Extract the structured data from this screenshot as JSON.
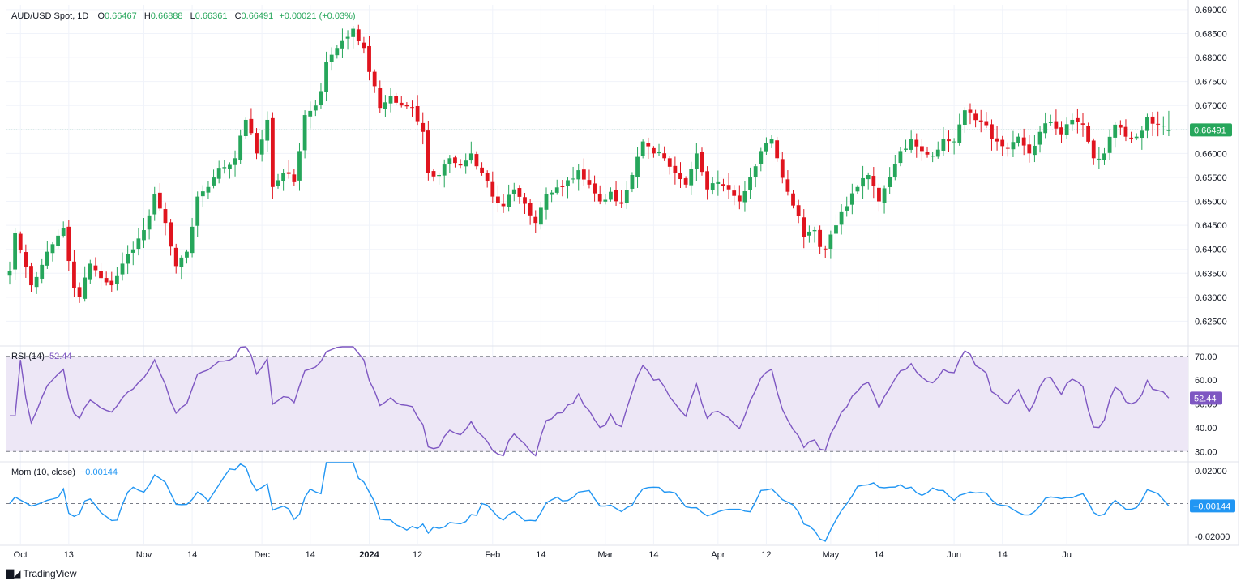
{
  "header": {
    "symbol": "AUD/USD Spot, 1D",
    "o_label": "O",
    "o_value": "0.66467",
    "h_label": "H",
    "h_value": "0.66888",
    "l_label": "L",
    "l_value": "0.66361",
    "c_label": "C",
    "c_value": "0.66491",
    "change": "+0.00021 (+0.03%)"
  },
  "rsi_legend": {
    "label": "RSI (14)",
    "value": "52.44"
  },
  "mom_legend": {
    "label": "Mom (10, close)",
    "value": "−0.00144"
  },
  "branding": {
    "name": "TradingView"
  },
  "colors": {
    "up": "#26a65b",
    "down": "#e0141e",
    "rsi_line": "#7e57c2",
    "rsi_band": "#ede7f6",
    "mom_line": "#2196f3",
    "last_badge": "#26a65b",
    "mom_badge": "#2196f3"
  },
  "chart_data": [
    {
      "type": "candlestick",
      "title": "AUD/USD Spot, 1D",
      "ylim": [
        0.62,
        0.691
      ],
      "y_ticks": [
        "0.69000",
        "0.68500",
        "0.68000",
        "0.67500",
        "0.67000",
        "0.66500",
        "0.66000",
        "0.65500",
        "0.65000",
        "0.64500",
        "0.64000",
        "0.63500",
        "0.63000",
        "0.62500"
      ],
      "last_price": "0.66491",
      "x_ticks": [
        {
          "label": "Oct",
          "index": 2
        },
        {
          "label": "13",
          "index": 11
        },
        {
          "label": "Nov",
          "index": 25
        },
        {
          "label": "14",
          "index": 34
        },
        {
          "label": "Dec",
          "index": 47
        },
        {
          "label": "14",
          "index": 56
        },
        {
          "label": "2024",
          "index": 67
        },
        {
          "label": "12",
          "index": 76
        },
        {
          "label": "Feb",
          "index": 90
        },
        {
          "label": "14",
          "index": 99
        },
        {
          "label": "Mar",
          "index": 111
        },
        {
          "label": "14",
          "index": 120
        },
        {
          "label": "Apr",
          "index": 132
        },
        {
          "label": "12",
          "index": 141
        },
        {
          "label": "May",
          "index": 153
        },
        {
          "label": "14",
          "index": 162
        },
        {
          "label": "Jun",
          "index": 176
        },
        {
          "label": "14",
          "index": 185
        },
        {
          "label": "Ju",
          "index": 197
        }
      ],
      "close_anchors": [
        [
          0,
          0.6355
        ],
        [
          1,
          0.6435
        ],
        [
          4,
          0.6325
        ],
        [
          7,
          0.6395
        ],
        [
          10,
          0.6445
        ],
        [
          12,
          0.632
        ],
        [
          13,
          0.63
        ],
        [
          15,
          0.637
        ],
        [
          17,
          0.634
        ],
        [
          19,
          0.6325
        ],
        [
          21,
          0.637
        ],
        [
          23,
          0.64
        ],
        [
          25,
          0.644
        ],
        [
          27,
          0.6515
        ],
        [
          29,
          0.6455
        ],
        [
          31,
          0.6365
        ],
        [
          33,
          0.6395
        ],
        [
          35,
          0.651
        ],
        [
          37,
          0.653
        ],
        [
          39,
          0.657
        ],
        [
          42,
          0.659
        ],
        [
          44,
          0.667
        ],
        [
          46,
          0.66
        ],
        [
          48,
          0.667
        ],
        [
          49,
          0.653
        ],
        [
          51,
          0.656
        ],
        [
          53,
          0.654
        ],
        [
          55,
          0.668
        ],
        [
          57,
          0.67
        ],
        [
          58,
          0.673
        ],
        [
          59,
          0.679
        ],
        [
          61,
          0.682
        ],
        [
          64,
          0.686
        ],
        [
          66,
          0.682
        ],
        [
          67,
          0.677
        ],
        [
          69,
          0.6695
        ],
        [
          71,
          0.672
        ],
        [
          73,
          0.67
        ],
        [
          75,
          0.6695
        ],
        [
          77,
          0.6645
        ],
        [
          78,
          0.656
        ],
        [
          80,
          0.6555
        ],
        [
          82,
          0.659
        ],
        [
          84,
          0.6575
        ],
        [
          86,
          0.66
        ],
        [
          88,
          0.656
        ],
        [
          90,
          0.651
        ],
        [
          92,
          0.649
        ],
        [
          94,
          0.6525
        ],
        [
          96,
          0.6495
        ],
        [
          98,
          0.6455
        ],
        [
          100,
          0.6515
        ],
        [
          103,
          0.653
        ],
        [
          106,
          0.6565
        ],
        [
          108,
          0.6535
        ],
        [
          110,
          0.65
        ],
        [
          112,
          0.652
        ],
        [
          114,
          0.6495
        ],
        [
          116,
          0.6555
        ],
        [
          118,
          0.6625
        ],
        [
          120,
          0.66
        ],
        [
          122,
          0.659
        ],
        [
          124,
          0.656
        ],
        [
          126,
          0.6535
        ],
        [
          128,
          0.66
        ],
        [
          130,
          0.6525
        ],
        [
          132,
          0.654
        ],
        [
          134,
          0.6525
        ],
        [
          136,
          0.65
        ],
        [
          138,
          0.655
        ],
        [
          140,
          0.6605
        ],
        [
          142,
          0.663
        ],
        [
          143,
          0.659
        ],
        [
          145,
          0.652
        ],
        [
          147,
          0.647
        ],
        [
          148,
          0.6425
        ],
        [
          150,
          0.644
        ],
        [
          151,
          0.6405
        ],
        [
          152,
          0.64
        ],
        [
          154,
          0.645
        ],
        [
          156,
          0.649
        ],
        [
          158,
          0.653
        ],
        [
          160,
          0.6555
        ],
        [
          162,
          0.65
        ],
        [
          164,
          0.655
        ],
        [
          166,
          0.6605
        ],
        [
          168,
          0.663
        ],
        [
          170,
          0.6605
        ],
        [
          172,
          0.6595
        ],
        [
          174,
          0.663
        ],
        [
          176,
          0.6625
        ],
        [
          178,
          0.669
        ],
        [
          181,
          0.6665
        ],
        [
          184,
          0.6625
        ],
        [
          186,
          0.661
        ],
        [
          188,
          0.6635
        ],
        [
          190,
          0.66
        ],
        [
          192,
          0.6645
        ],
        [
          194,
          0.6665
        ],
        [
          196,
          0.664
        ],
        [
          198,
          0.667
        ],
        [
          200,
          0.666
        ],
        [
          202,
          0.659
        ],
        [
          204,
          0.66
        ],
        [
          206,
          0.666
        ],
        [
          208,
          0.6635
        ],
        [
          210,
          0.6635
        ],
        [
          212,
          0.6675
        ],
        [
          214,
          0.666
        ],
        [
          216,
          0.6649
        ]
      ]
    },
    {
      "type": "line",
      "name": "RSI (14)",
      "ylim": [
        26,
        74
      ],
      "y_ticks": [
        "70.00",
        "60.00",
        "50.00",
        "40.00",
        "30.00"
      ],
      "bands": [
        30,
        50,
        70
      ],
      "last_value": "52.44"
    },
    {
      "type": "line",
      "name": "Mom (10, close)",
      "ylim": [
        -0.025,
        0.025
      ],
      "y_ticks": [
        "0.02000",
        "-0.02000"
      ],
      "zero_line": 0,
      "last_value": "−0.00144"
    }
  ]
}
